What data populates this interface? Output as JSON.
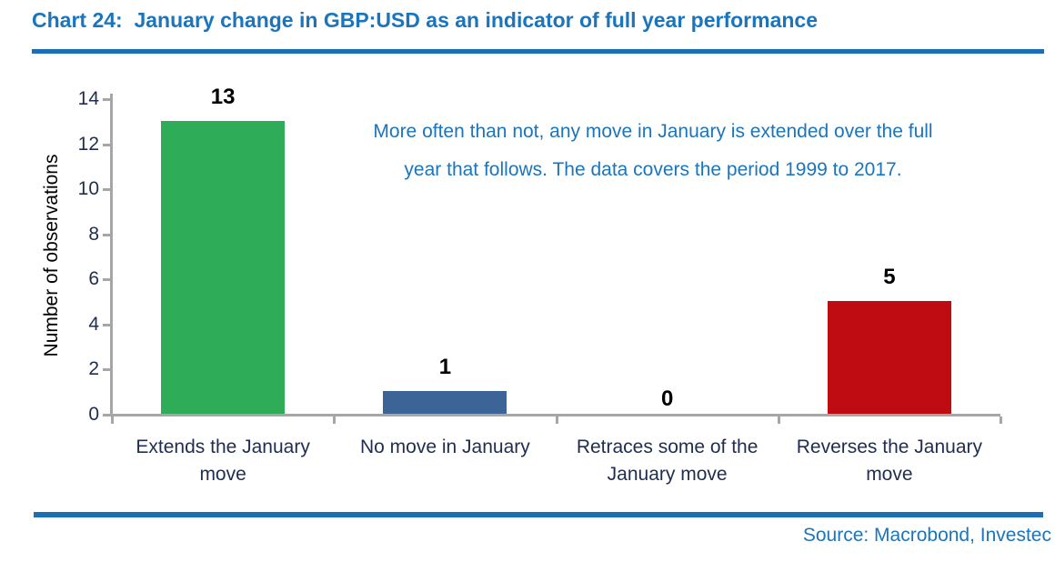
{
  "header": {
    "title": "Chart 24:  January change in GBP:USD as an indicator of full year performance"
  },
  "annotation": {
    "line1": "More often than not, any move in January is extended over the full",
    "line2": "year that follows. The data covers the period 1999 to 2017."
  },
  "footer": {
    "source": "Source: Macrobond, Investec"
  },
  "colors": {
    "accent_blue": "#1B75BC",
    "rule_blue": "#1B6FB5",
    "axis_gray": "#A6A6A6",
    "label_navy": "#1E2D50",
    "bar_green": "#2FAC58",
    "bar_blue": "#3C6496",
    "bar_red": "#BE0C12",
    "value_label_black": "#000000"
  },
  "chart_data": {
    "type": "bar",
    "title": "",
    "categories": [
      "Extends the January move",
      "No move in January",
      "Retraces some of the January move",
      "Reverses the January move"
    ],
    "values": [
      13,
      1,
      0,
      5
    ],
    "data_labels": [
      "13",
      "1",
      "0",
      "5"
    ],
    "bar_colors": [
      "#2FAC58",
      "#3C6496",
      null,
      "#BE0C12"
    ],
    "xlabel": "",
    "ylabel": "Number of observations",
    "ylim": [
      0,
      14
    ],
    "yticks": [
      0,
      2,
      4,
      6,
      8,
      10,
      12,
      14
    ],
    "grid": false,
    "legend": "none"
  }
}
